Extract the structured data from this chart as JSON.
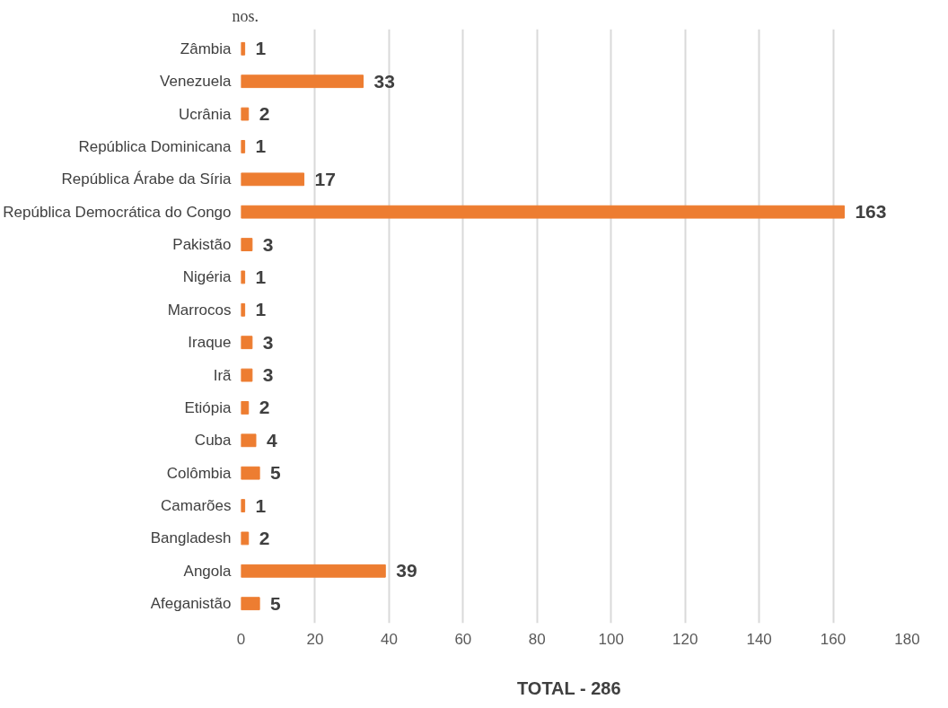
{
  "chart_data": {
    "type": "bar",
    "orientation": "horizontal",
    "xlabel": "TOTAL  -  286",
    "annotations": [
      "nos."
    ],
    "categories": [
      "Zâmbia",
      "Venezuela",
      "Ucrânia",
      "República Dominicana",
      "República Árabe da Síria",
      "República Democrática do Congo",
      "Pakistão",
      "Nigéria",
      "Marrocos",
      "Iraque",
      "Irã",
      "Etiópia",
      "Cuba",
      "Colômbia",
      "Camarões",
      "Bangladesh",
      "Angola",
      "Afeganistão"
    ],
    "values": [
      1,
      33,
      2,
      1,
      17,
      163,
      3,
      1,
      1,
      3,
      3,
      2,
      4,
      5,
      1,
      2,
      39,
      5
    ],
    "color": "#ed7d31",
    "xlim": [
      0,
      180
    ],
    "xticks": [
      0,
      20,
      40,
      60,
      80,
      100,
      120,
      140,
      160,
      180
    ],
    "grid": "x",
    "data_labels": true
  }
}
